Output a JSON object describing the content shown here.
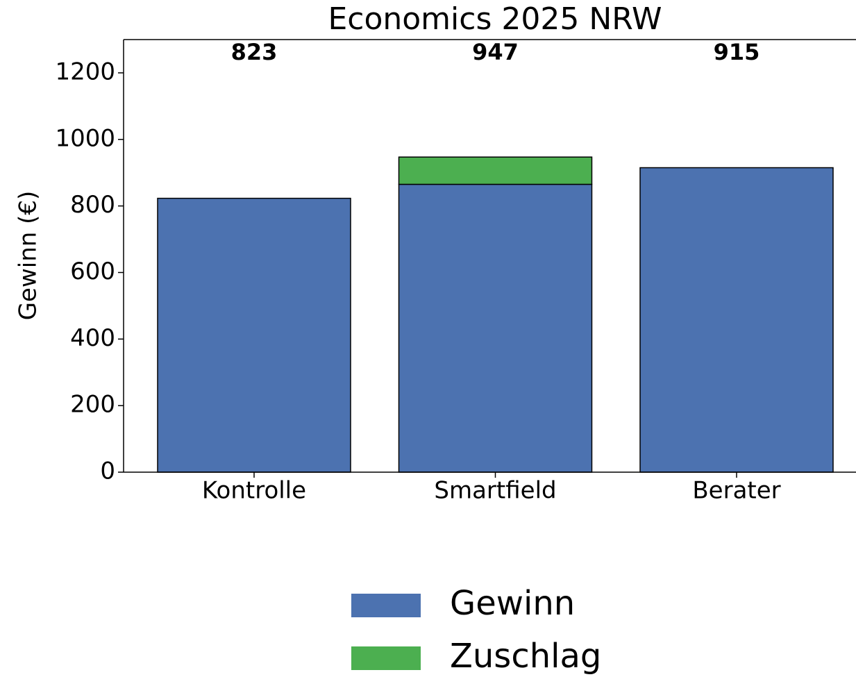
{
  "chart_data": {
    "type": "stacked_bar",
    "title": "Economics 2025 NRW",
    "ylabel": "Gewinn (€)",
    "categories": [
      "Kontrolle",
      "Smartfield",
      "Berater"
    ],
    "series": [
      {
        "name": "Gewinn",
        "color": "#4c72b0",
        "values": [
          823,
          865,
          915
        ]
      },
      {
        "name": "Zuschlag",
        "color": "#4caf50",
        "values": [
          0,
          82,
          0
        ]
      }
    ],
    "totals": [
      823,
      947,
      915
    ],
    "ylim": [
      0,
      1300
    ],
    "yticks": [
      0,
      200,
      400,
      600,
      800,
      1000,
      1200
    ],
    "legend": "bottom"
  }
}
